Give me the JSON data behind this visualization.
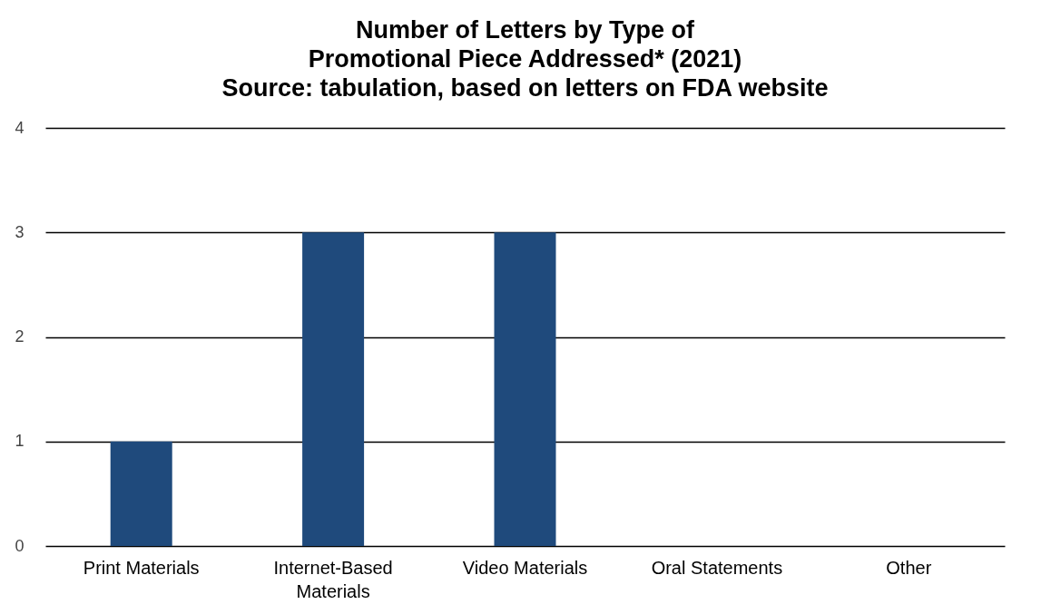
{
  "chart_data": {
    "type": "bar",
    "title": "Number of Letters by Type of\nPromotional Piece Addressed* (2021)\nSource: tabulation, based on letters on FDA website",
    "categories": [
      "Print Materials",
      "Internet-Based Materials",
      "Video Materials",
      "Oral Statements",
      "Other"
    ],
    "values": [
      1,
      3,
      3,
      0,
      0
    ],
    "color": "#1f4a7c",
    "ylim": [
      0,
      4
    ],
    "yticks": [
      0,
      1,
      2,
      3,
      4
    ],
    "grid": "y"
  }
}
